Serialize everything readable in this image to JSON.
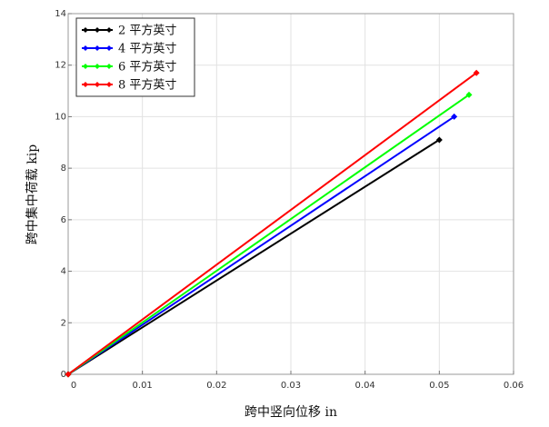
{
  "chart_data": {
    "type": "line",
    "xlabel": "跨中竖向位移 in",
    "ylabel": "跨中集中荷载 kip",
    "xlim": [
      0,
      0.06
    ],
    "ylim": [
      0,
      14
    ],
    "xticks": [
      0,
      0.01,
      0.02,
      0.03,
      0.04,
      0.05,
      0.06
    ],
    "xtick_labels": [
      "0",
      "0.01",
      "0.02",
      "0.03",
      "0.04",
      "0.05",
      "0.06"
    ],
    "yticks": [
      0,
      2,
      4,
      6,
      8,
      10,
      12,
      14
    ],
    "ytick_labels": [
      "0",
      "2",
      "4",
      "6",
      "8",
      "10",
      "12",
      "14"
    ],
    "grid": true,
    "legend_position": "top-left",
    "series": [
      {
        "name": "2 平方英寸",
        "color": "#000000",
        "x": [
          0,
          0.05
        ],
        "y": [
          0,
          9.1
        ]
      },
      {
        "name": "4 平方英寸",
        "color": "#0000ff",
        "x": [
          0,
          0.052
        ],
        "y": [
          0,
          10
        ]
      },
      {
        "name": "6 平方英寸",
        "color": "#00ff00",
        "x": [
          0,
          0.054
        ],
        "y": [
          0,
          10.85
        ]
      },
      {
        "name": "8 平方英寸",
        "color": "#ff0000",
        "x": [
          0,
          0.055
        ],
        "y": [
          0,
          11.7
        ]
      }
    ]
  }
}
